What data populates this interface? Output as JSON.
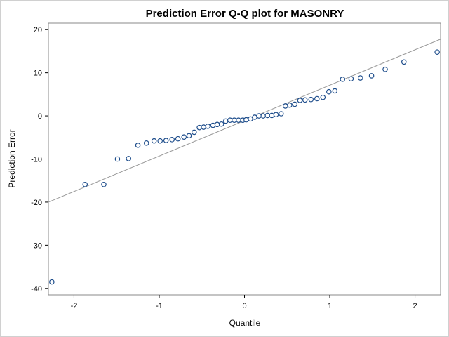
{
  "chart_data": {
    "type": "scatter",
    "title": "Prediction Error Q-Q plot for MASONRY",
    "xlabel": "Quantile",
    "ylabel": "Prediction Error",
    "xlim": [
      -2.3,
      2.3
    ],
    "ylim": [
      -41.5,
      21.5
    ],
    "xticks": [
      -2,
      -1,
      0,
      1,
      2
    ],
    "yticks": [
      -40,
      -30,
      -20,
      -10,
      0,
      10,
      20
    ],
    "grid": false,
    "marker_color": "#1f4e8c",
    "reference_line": {
      "x": [
        -2.3,
        2.3
      ],
      "y": [
        -20,
        17.8
      ],
      "color": "#999999"
    },
    "series": [
      {
        "x": [
          -2.26,
          -1.87,
          -1.65,
          -1.49,
          -1.36,
          -1.25,
          -1.15,
          -1.06,
          -0.99,
          -0.92,
          -0.85,
          -0.78,
          -0.71,
          -0.65,
          -0.59,
          -0.53,
          -0.48,
          -0.43,
          -0.37,
          -0.32,
          -0.27,
          -0.22,
          -0.17,
          -0.12,
          -0.07,
          -0.02,
          0.02,
          0.07,
          0.12,
          0.17,
          0.22,
          0.27,
          0.32,
          0.37,
          0.43,
          0.48,
          0.53,
          0.59,
          0.65,
          0.71,
          0.78,
          0.85,
          0.92,
          0.99,
          1.06,
          1.15,
          1.25,
          1.36,
          1.49,
          1.65,
          1.87,
          2.26
        ],
        "y": [
          -38.5,
          -15.9,
          -15.9,
          -10.0,
          -9.9,
          -6.8,
          -6.3,
          -5.8,
          -5.8,
          -5.7,
          -5.5,
          -5.3,
          -4.9,
          -4.6,
          -3.8,
          -2.7,
          -2.6,
          -2.4,
          -2.2,
          -2.0,
          -1.9,
          -1.2,
          -1.0,
          -1.0,
          -1.0,
          -1.0,
          -0.9,
          -0.7,
          -0.3,
          0.0,
          0.0,
          0.1,
          0.1,
          0.3,
          0.5,
          2.3,
          2.5,
          2.7,
          3.6,
          3.7,
          3.8,
          4.0,
          4.3,
          5.6,
          5.8,
          8.5,
          8.6,
          8.8,
          9.3,
          10.8,
          12.5,
          14.8
        ]
      }
    ]
  }
}
